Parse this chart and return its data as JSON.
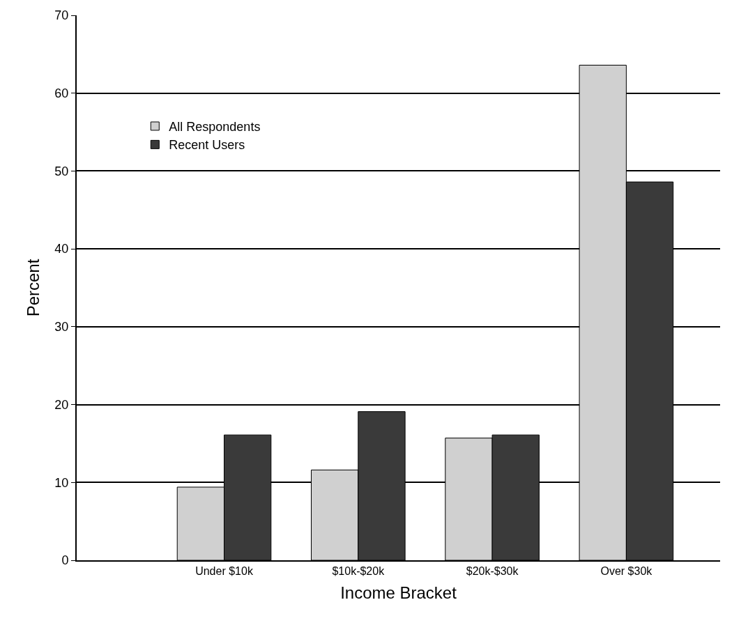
{
  "chart_data": {
    "type": "bar",
    "xlabel": "Income Bracket",
    "ylabel": "Percent",
    "categories": [
      "Under $10k",
      "$10k-$20k",
      "$20k-$30k",
      "Over $30k"
    ],
    "series": [
      {
        "name": "All Respondents",
        "color": "#d0d0d0",
        "values": [
          9.4,
          11.6,
          15.7,
          63.6
        ]
      },
      {
        "name": "Recent Users",
        "color": "#3a3a3a",
        "values": [
          16.1,
          19.1,
          16.1,
          48.6
        ]
      }
    ],
    "ylim": [
      0,
      70
    ],
    "yticks": [
      0,
      10,
      20,
      30,
      40,
      50,
      60,
      70
    ],
    "grid": "y",
    "legend": "top left"
  }
}
